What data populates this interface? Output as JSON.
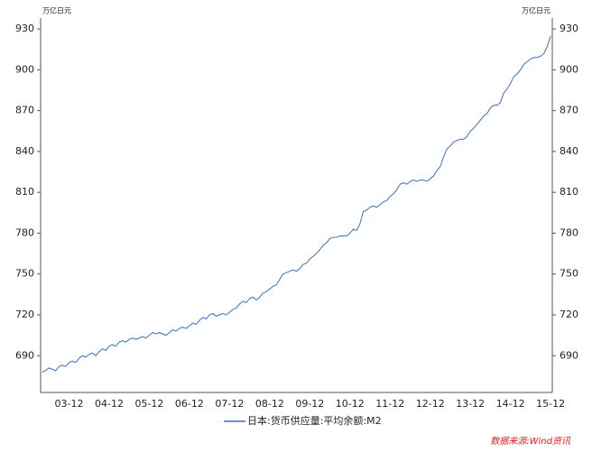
{
  "chart_data": {
    "type": "line",
    "y_label": "万亿日元",
    "y2_label": "万亿日元",
    "source": "数据来源:Wind资讯",
    "x": [
      "03-04",
      "03-05",
      "03-06",
      "03-07",
      "03-08",
      "03-09",
      "03-10",
      "03-11",
      "03-12",
      "04-01",
      "04-02",
      "04-03",
      "04-04",
      "04-05",
      "04-06",
      "04-07",
      "04-08",
      "04-09",
      "04-10",
      "04-11",
      "04-12",
      "05-01",
      "05-02",
      "05-03",
      "05-04",
      "05-05",
      "05-06",
      "05-07",
      "05-08",
      "05-09",
      "05-10",
      "05-11",
      "05-12",
      "06-01",
      "06-02",
      "06-03",
      "06-04",
      "06-05",
      "06-06",
      "06-07",
      "06-08",
      "06-09",
      "06-10",
      "06-11",
      "06-12",
      "07-01",
      "07-02",
      "07-03",
      "07-04",
      "07-05",
      "07-06",
      "07-07",
      "07-08",
      "07-09",
      "07-10",
      "07-11",
      "07-12",
      "08-01",
      "08-02",
      "08-03",
      "08-04",
      "08-05",
      "08-06",
      "08-07",
      "08-08",
      "08-09",
      "08-10",
      "08-11",
      "08-12",
      "09-01",
      "09-02",
      "09-03",
      "09-04",
      "09-05",
      "09-06",
      "09-07",
      "09-08",
      "09-09",
      "09-10",
      "09-11",
      "09-12",
      "10-01",
      "10-02",
      "10-03",
      "10-04",
      "10-05",
      "10-06",
      "10-07",
      "10-08",
      "10-09",
      "10-10",
      "10-11",
      "10-12",
      "11-01",
      "11-02",
      "11-03",
      "11-04",
      "11-05",
      "11-06",
      "11-07",
      "11-08",
      "11-09",
      "11-10",
      "11-11",
      "11-12",
      "12-01",
      "12-02",
      "12-03",
      "12-04",
      "12-05",
      "12-06",
      "12-07",
      "12-08",
      "12-09",
      "12-10",
      "12-11",
      "12-12",
      "13-01",
      "13-02",
      "13-03",
      "13-04",
      "13-05",
      "13-06",
      "13-07",
      "13-08",
      "13-09",
      "13-10",
      "13-11",
      "13-12",
      "14-01",
      "14-02",
      "14-03",
      "14-04",
      "14-05",
      "14-06",
      "14-07",
      "14-08",
      "14-09",
      "14-10",
      "14-11",
      "14-12",
      "15-01",
      "15-02",
      "15-03",
      "15-04",
      "15-05",
      "15-06",
      "15-07",
      "15-08",
      "15-09",
      "15-10",
      "15-11",
      "15-12"
    ],
    "xticks": [
      "03-12",
      "04-12",
      "05-12",
      "06-12",
      "07-12",
      "08-12",
      "09-12",
      "10-12",
      "11-12",
      "12-12",
      "13-12",
      "14-12",
      "15-12"
    ],
    "series": [
      {
        "name": "日本:货币供应量:平均余额:M2",
        "color": "#3a6fc4",
        "values": [
          678,
          679,
          681,
          680,
          679,
          682,
          683,
          682,
          685,
          686,
          685,
          688,
          690,
          689,
          691,
          692,
          690,
          693,
          695,
          694,
          697,
          698,
          697,
          700,
          701,
          700,
          702,
          703,
          702,
          703,
          704,
          703,
          705,
          707,
          706,
          707,
          706,
          705,
          707,
          709,
          708,
          710,
          711,
          710,
          712,
          714,
          713,
          716,
          718,
          717,
          720,
          721,
          719,
          720,
          721,
          720,
          722,
          724,
          725,
          728,
          730,
          729,
          732,
          733,
          731,
          733,
          736,
          737,
          739,
          741,
          742,
          746,
          750,
          751,
          752,
          753,
          752,
          754,
          757,
          758,
          761,
          763,
          765,
          768,
          771,
          773,
          776,
          777,
          777,
          778,
          778,
          778,
          780,
          783,
          782,
          787,
          796,
          797,
          799,
          800,
          799,
          801,
          803,
          804,
          807,
          809,
          812,
          816,
          817,
          816,
          818,
          819,
          818,
          819,
          819,
          818,
          820,
          822,
          826,
          829,
          836,
          842,
          844,
          847,
          848,
          849,
          849,
          851,
          855,
          857,
          860,
          863,
          866,
          868,
          872,
          874,
          874,
          876,
          883,
          886,
          890,
          895,
          897,
          900,
          904,
          906,
          908,
          909,
          909,
          910,
          912,
          917,
          925
        ]
      }
    ],
    "ylim": [
      663,
      938
    ],
    "yticks": [
      690,
      720,
      750,
      780,
      810,
      840,
      870,
      900,
      930
    ],
    "y2lim": [
      663,
      938
    ],
    "y2ticks": [
      690,
      720,
      750,
      780,
      810,
      840,
      870,
      900,
      930
    ],
    "grid": false,
    "legend": "bottom"
  }
}
